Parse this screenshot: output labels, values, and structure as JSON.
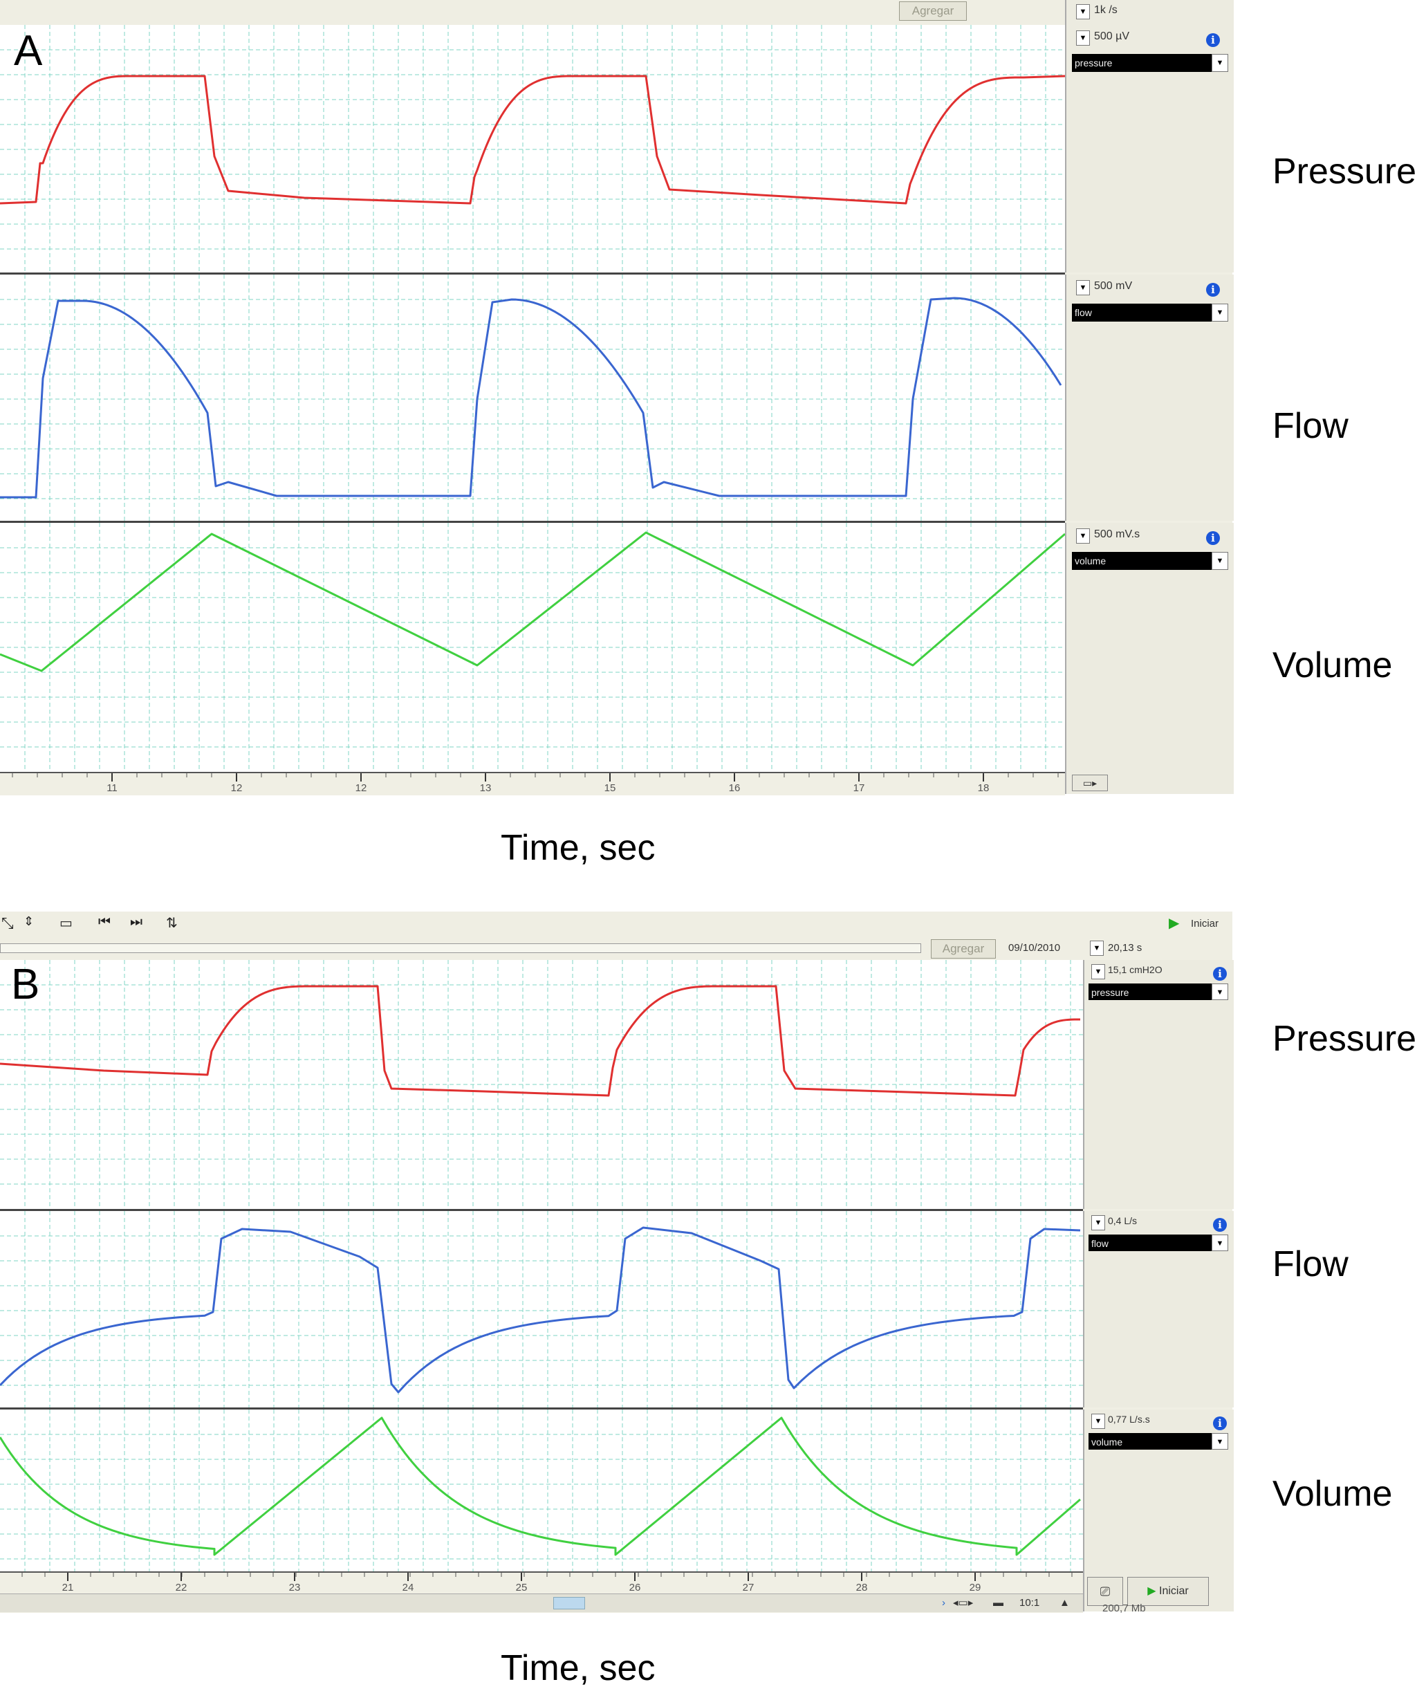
{
  "panel_a": {
    "letter": "A",
    "top_button": "Agregar",
    "sample_rate": "1k /s",
    "channels": [
      {
        "scale": "500 µV",
        "name": "pressure",
        "label": "Pressure"
      },
      {
        "scale": "500 mV",
        "name": "flow",
        "label": "Flow"
      },
      {
        "scale": "500 mV.s",
        "name": "volume",
        "label": "Volume"
      }
    ],
    "time_ticks": [
      "11",
      "12",
      "12",
      "13",
      "15",
      "16",
      "17",
      "18"
    ],
    "caption": "Time, sec",
    "footer_button": "▭▸"
  },
  "panel_b": {
    "letter": "B",
    "toolbar_icons": [
      "zoom-icon",
      "scale-icon",
      "window-icon",
      "skip-back-icon",
      "skip-forward-icon",
      "adjust-icon"
    ],
    "start_label": "Iniciar",
    "top_button": "Agregar",
    "date": "09/10/2010",
    "duration": "20,13 s",
    "channels": [
      {
        "scale": "15,1 cmH2O",
        "name": "pressure",
        "label": "Pressure"
      },
      {
        "scale": "0,4 L/s",
        "name": "flow",
        "label": "Flow"
      },
      {
        "scale": "0,77 L/s.s",
        "name": "volume",
        "label": "Volume"
      }
    ],
    "time_ticks": [
      "21",
      "22",
      "23",
      "24",
      "25",
      "26",
      "27",
      "28",
      "29"
    ],
    "zoom": "10:1",
    "footer_start": "Iniciar",
    "footer_mem": "200,7 Mb",
    "caption": "Time, sec"
  },
  "colors": {
    "pressure": "#e03030",
    "flow": "#3a66d0",
    "volume": "#40d040",
    "grid": "#7fd6c4"
  }
}
